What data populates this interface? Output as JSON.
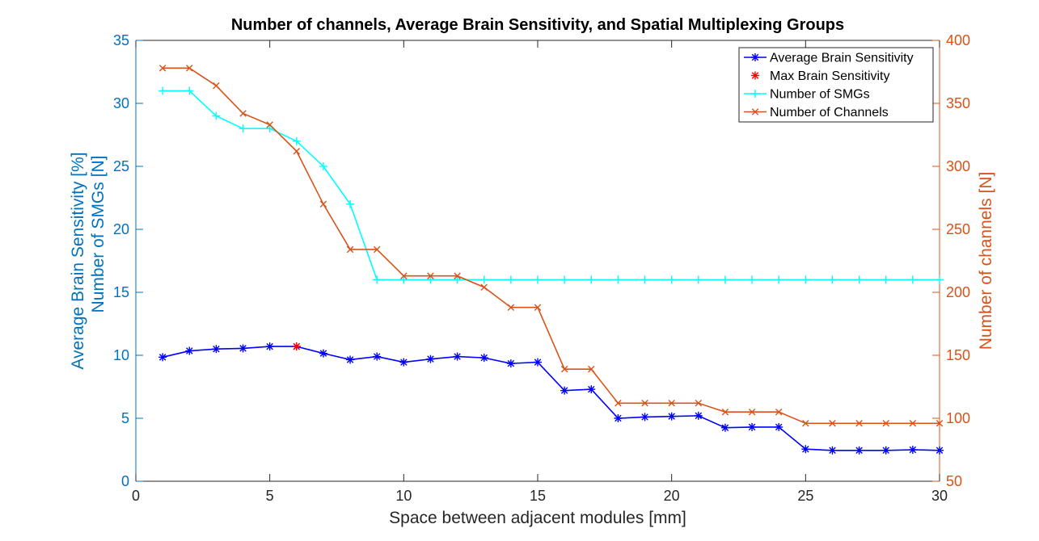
{
  "chart_data": {
    "type": "line",
    "title": "Number of channels, Average Brain Sensitivity, and Spatial Multiplexing Groups",
    "xlabel": "Space between adjacent modules [mm]",
    "ylabel_left": [
      "Average Brain Sensitivity [%]",
      "Number of SMGs [N]"
    ],
    "ylabel_right": "Number of channels [N]",
    "xlim": [
      0,
      30
    ],
    "ylim_left": [
      0,
      35
    ],
    "ylim_right": [
      50,
      400
    ],
    "xticks": [
      0,
      5,
      10,
      15,
      20,
      25,
      30
    ],
    "yticks_left": [
      0,
      5,
      10,
      15,
      20,
      25,
      30,
      35
    ],
    "yticks_right": [
      50,
      100,
      150,
      200,
      250,
      300,
      350,
      400
    ],
    "grid": false,
    "legend_position": "top-right",
    "colors": {
      "left_axis": "#0072BD",
      "right_axis": "#D95319",
      "frame": "#262626"
    },
    "series": [
      {
        "name": "Average Brain Sensitivity",
        "axis": "left",
        "color": "#0000FF",
        "marker": "asterisk",
        "x": [
          1,
          2,
          3,
          4,
          5,
          6,
          7,
          8,
          9,
          10,
          11,
          12,
          13,
          14,
          15,
          16,
          17,
          18,
          19,
          20,
          21,
          22,
          23,
          24,
          25,
          26,
          27,
          28,
          29,
          30
        ],
        "values": [
          9.85,
          10.35,
          10.5,
          10.55,
          10.7,
          10.7,
          10.15,
          9.65,
          9.9,
          9.45,
          9.7,
          9.9,
          9.8,
          9.35,
          9.45,
          7.2,
          7.3,
          5.0,
          5.1,
          5.15,
          5.2,
          4.25,
          4.3,
          4.3,
          2.55,
          2.45,
          2.45,
          2.45,
          2.5,
          2.45
        ]
      },
      {
        "name": "Max Brain Sensitivity",
        "axis": "left",
        "color": "#FF0000",
        "marker": "asterisk",
        "x": [
          6
        ],
        "values": [
          10.7
        ]
      },
      {
        "name": "Number of SMGs",
        "axis": "left",
        "color": "#00FFFF",
        "marker": "plus",
        "x": [
          1,
          2,
          3,
          4,
          5,
          6,
          7,
          8,
          9,
          10,
          11,
          12,
          13,
          14,
          15,
          16,
          17,
          18,
          19,
          20,
          21,
          22,
          23,
          24,
          25,
          26,
          27,
          28,
          29,
          30
        ],
        "values": [
          31,
          31,
          29,
          28,
          28,
          27,
          25,
          22,
          16,
          16,
          16,
          16,
          16,
          16,
          16,
          16,
          16,
          16,
          16,
          16,
          16,
          16,
          16,
          16,
          16,
          16,
          16,
          16,
          16,
          16
        ]
      },
      {
        "name": "Number of Channels",
        "axis": "right",
        "color": "#D95319",
        "marker": "x",
        "x": [
          1,
          2,
          3,
          4,
          5,
          6,
          7,
          8,
          9,
          10,
          11,
          12,
          13,
          14,
          15,
          16,
          17,
          18,
          19,
          20,
          21,
          22,
          23,
          24,
          25,
          26,
          27,
          28,
          29,
          30
        ],
        "values": [
          378,
          378,
          364,
          342,
          333,
          312,
          270,
          234,
          234,
          213,
          213,
          213,
          204,
          188,
          188,
          139,
          139,
          112,
          112,
          112,
          112,
          105,
          105,
          105,
          96,
          96,
          96,
          96,
          96,
          96
        ]
      }
    ]
  }
}
